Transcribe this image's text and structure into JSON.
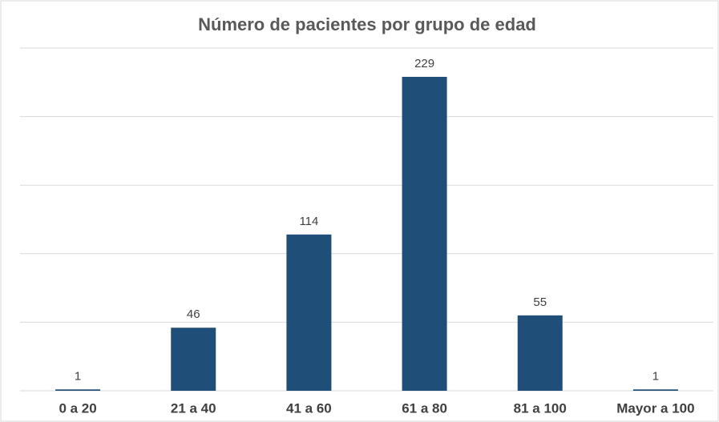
{
  "chart_data": {
    "type": "bar",
    "title": "Número de pacientes por grupo de edad",
    "categories": [
      "0 a 20",
      "21 a 40",
      "41 a 60",
      "61 a 80",
      "81 a 100",
      "Mayor a 100"
    ],
    "values": [
      1,
      46,
      114,
      229,
      55,
      1
    ],
    "color": "#1f4e79",
    "ylim": [
      0,
      250
    ],
    "yticks": [
      0,
      50,
      100,
      150,
      200,
      250
    ],
    "grid": true
  }
}
